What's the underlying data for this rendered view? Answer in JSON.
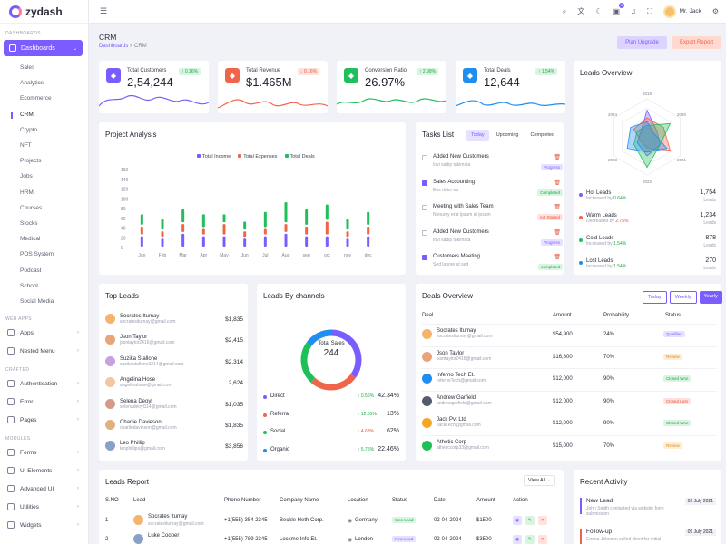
{
  "app": {
    "name": "zydash"
  },
  "sidebar": {
    "sec_dash": "DASHBOARDS",
    "main": "Dashboards",
    "subs": [
      "Sales",
      "Analytics",
      "Ecommerce",
      "CRM",
      "Crypto",
      "NFT",
      "Projects",
      "Jobs",
      "HRM",
      "Courses",
      "Stocks",
      "Medical",
      "POS System",
      "Podcast",
      "School",
      "Social Media"
    ],
    "sec_web": "WEB APPS",
    "web": [
      "Apps",
      "Nested Menu"
    ],
    "sec_craft": "CRAFTED",
    "craft": [
      "Authentication",
      "Error",
      "Pages"
    ],
    "sec_mod": "MODULES",
    "mod": [
      "Forms",
      "UI Elements",
      "Advanced UI",
      "Utilities",
      "Widgets"
    ]
  },
  "header": {
    "user": "Mr. Jack",
    "notif": "5"
  },
  "page": {
    "title": "CRM",
    "crumb_root": "Dashboards",
    "crumb_sep": "»",
    "crumb_current": "CRM",
    "plan": "Plan Upgrade",
    "export": "Export Report"
  },
  "stats": [
    {
      "label": "Total Customers",
      "value": "2,54,244",
      "pct": "↑ 0.16%",
      "dir": "up",
      "color": "#7b5cff",
      "icon": "users-icon"
    },
    {
      "label": "Total Revenue",
      "value": "$1.465M",
      "pct": "↓ 0.16%",
      "dir": "down",
      "color": "#f0654a",
      "icon": "wallet-icon"
    },
    {
      "label": "Conversion Ratio",
      "value": "26.97%",
      "pct": "↑ 2.98%",
      "dir": "up",
      "color": "#1fbf5a",
      "icon": "wave-icon"
    },
    {
      "label": "Total Deals",
      "value": "12,644",
      "pct": "↑ 1.54%",
      "dir": "up",
      "color": "#1e8ef0",
      "icon": "bag-icon"
    }
  ],
  "project": {
    "title": "Project Analysis",
    "legend": [
      "Total Income",
      "Total Expenses",
      "Total Deals"
    ]
  },
  "chart_data": {
    "type": "bar",
    "title": "Project Analysis",
    "categories": [
      "Jan",
      "Feb",
      "Mar",
      "Apr",
      "May",
      "Jun",
      "Jul",
      "Aug",
      "sep",
      "oct",
      "nov",
      "dec"
    ],
    "series": [
      {
        "name": "Total Income",
        "color": "#7b5cff",
        "values": [
          25,
          20,
          30,
          25,
          25,
          20,
          25,
          30,
          25,
          25,
          20,
          25
        ]
      },
      {
        "name": "Total Expenses",
        "color": "#f0654a",
        "values": [
          20,
          15,
          20,
          15,
          25,
          15,
          15,
          20,
          20,
          30,
          15,
          20
        ]
      },
      {
        "name": "Total Deals",
        "color": "#1fbf5a",
        "values": [
          25,
          25,
          30,
          30,
          20,
          20,
          35,
          45,
          35,
          35,
          25,
          30
        ]
      }
    ],
    "yticks": [
      "160",
      "140",
      "120",
      "100",
      "80",
      "60",
      "40",
      "20",
      "0"
    ],
    "ylim": [
      0,
      160
    ]
  },
  "tasks": {
    "title": "Tasks List",
    "tabs": [
      "Today",
      "Upcoming",
      "Completed"
    ],
    "items": [
      {
        "t": "Added New Customers",
        "s": "Invi sadip takimata",
        "st": "Progress",
        "c": "p",
        "on": false
      },
      {
        "t": "Sales Accounting",
        "s": "Eos dolor ea",
        "st": "Completed",
        "c": "g",
        "on": true
      },
      {
        "t": "Meeting with Sales Team",
        "s": "Nonumy erat ipsum et ipsum",
        "st": "not Started",
        "c": "r",
        "on": false
      },
      {
        "t": "Added New Customers",
        "s": "Invi sadip takimata",
        "st": "Progress",
        "c": "p",
        "on": false
      },
      {
        "t": "Customers Meeting",
        "s": "Sed labore ut sed",
        "st": "completed",
        "c": "g",
        "on": true
      }
    ]
  },
  "leads_overview": {
    "title": "Leads Overview",
    "years": [
      "2019",
      "2020",
      "2021",
      "2022",
      "2023",
      "2024"
    ],
    "items": [
      {
        "n": "Hot Leads",
        "d": "Increased by",
        "p": "0.64%",
        "num": "1,754",
        "u": "Leads",
        "c": "#7b5cff",
        "dir": "up"
      },
      {
        "n": "Warm Leads",
        "d": "Decreased by",
        "p": "2.75%",
        "num": "1,234",
        "u": "Leads",
        "c": "#f0654a",
        "dir": "down"
      },
      {
        "n": "Cold Leads",
        "d": "Increased by",
        "p": "1.54%",
        "num": "878",
        "u": "Leads",
        "c": "#1fbf5a",
        "dir": "up"
      },
      {
        "n": "Lost Leads",
        "d": "Increased by",
        "p": "1.54%",
        "num": "270",
        "u": "Leads",
        "c": "#1e8ef0",
        "dir": "up"
      }
    ]
  },
  "top_leads": {
    "title": "Top Leads",
    "items": [
      {
        "n": "Socrates Itumay",
        "e": "socratesitumay@gmail.com",
        "a": "$1,835",
        "c": "#f5b36c"
      },
      {
        "n": "Json Taylor",
        "e": "jsontaylor2416@gmail.com",
        "a": "$2,415",
        "c": "#e8a57a"
      },
      {
        "n": "Suzika Stallone",
        "e": "suzikastallone3214@gmail.com",
        "a": "$2,314",
        "c": "#c9a0e0"
      },
      {
        "n": "Angelina Hose",
        "e": "angelinahose@gmail.com",
        "a": "2,624",
        "c": "#f3c7a0"
      },
      {
        "n": "Selena Deoyl",
        "e": "selenadeoyl114@gmail.com",
        "a": "$1,035",
        "c": "#d49a8a"
      },
      {
        "n": "Charlie Davieson",
        "e": "charliedavieson@gmail.com",
        "a": "$1,835",
        "c": "#e0b080"
      },
      {
        "n": "Leo Phillip",
        "e": "leophillips@gmail.com",
        "a": "$3,856",
        "c": "#8aa0c8"
      }
    ]
  },
  "channels": {
    "title": "Leads By channels",
    "center_label": "Total Sales",
    "center_value": "244",
    "items": [
      {
        "n": "Direct",
        "ch": "↑ 0.56%",
        "pc": "42.34%",
        "c": "#7b5cff",
        "dn": false
      },
      {
        "n": "Referral",
        "ch": "↑ 12.61%",
        "pc": "13%",
        "c": "#f0654a",
        "dn": false
      },
      {
        "n": "Social",
        "ch": "↓ 4.63%",
        "pc": "62%",
        "c": "#1fbf5a",
        "dn": true
      },
      {
        "n": "Organic",
        "ch": "↑ 5.75%",
        "pc": "22.46%",
        "c": "#1e8ef0",
        "dn": false
      }
    ]
  },
  "deals": {
    "title": "Deals Overview",
    "tabs": [
      "Today",
      "Weekly",
      "Yearly"
    ],
    "cols": [
      "Deal",
      "Amount",
      "Probability",
      "Status"
    ],
    "items": [
      {
        "n": "Socrates Itumay",
        "e": "socratesitumay@gmail.com",
        "a": "$54,900",
        "p": "24%",
        "s": "Qualified",
        "c": "p",
        "ic": "#f5b36c"
      },
      {
        "n": "Json Taylor",
        "e": "jsontaylor2416@gmail.com",
        "a": "$16,800",
        "p": "70%",
        "s": "Review",
        "c": "o",
        "ic": "#e8a57a"
      },
      {
        "n": "Inferno Tech Et.",
        "e": "InfernoTech@gmail.com",
        "a": "$12,000",
        "p": "90%",
        "s": "Closed Won",
        "c": "g",
        "ic": "#1e8ef0"
      },
      {
        "n": "Andrew Garfield",
        "e": "andrewgarfield@gmail.com",
        "a": "$12,000",
        "p": "90%",
        "s": "Closed Lost",
        "c": "r",
        "ic": "#555b6e"
      },
      {
        "n": "Jack Pvt Ltd",
        "e": "JackTech@gmail.com",
        "a": "$12,000",
        "p": "90%",
        "s": "Closed Won",
        "c": "g",
        "ic": "#f5a623"
      },
      {
        "n": "Athetic Corp",
        "e": "atheticcorp33@gmail.com",
        "a": "$15,000",
        "p": "70%",
        "s": "Review",
        "c": "o",
        "ic": "#1fbf5a"
      }
    ]
  },
  "leads_report": {
    "title": "Leads Report",
    "view": "View All",
    "cols": [
      "S.NO",
      "Lead",
      "Phone Number",
      "Company Name",
      "Location",
      "Status",
      "Date",
      "Amount",
      "Action"
    ],
    "rows": [
      {
        "no": "1",
        "n": "Socrates Itumay",
        "e": "socratesitumay@gmail.com",
        "ph": "+1(555) 354 2345",
        "co": "Beckle Heth Corp.",
        "lo": "Germany",
        "st": "Won Lead",
        "dt": "02-04-2024",
        "am": "$1500"
      },
      {
        "no": "2",
        "n": "Luke Cooper",
        "e": "",
        "ph": "+1(555) 789 2345",
        "co": "Lockme Info Et.",
        "lo": "London",
        "st": "New Lead",
        "dt": "02-04-2024",
        "am": "$3500"
      }
    ]
  },
  "activity": {
    "title": "Recent Activity",
    "items": [
      {
        "t": "New Lead",
        "s": "John Smith contacted via website form submission",
        "d": "09 July 2021",
        "c": "#7b5cff"
      },
      {
        "t": "Follow-up",
        "s": "Emma Johnson called client for initial",
        "d": "09 July 2021",
        "c": "#f0654a"
      }
    ]
  }
}
